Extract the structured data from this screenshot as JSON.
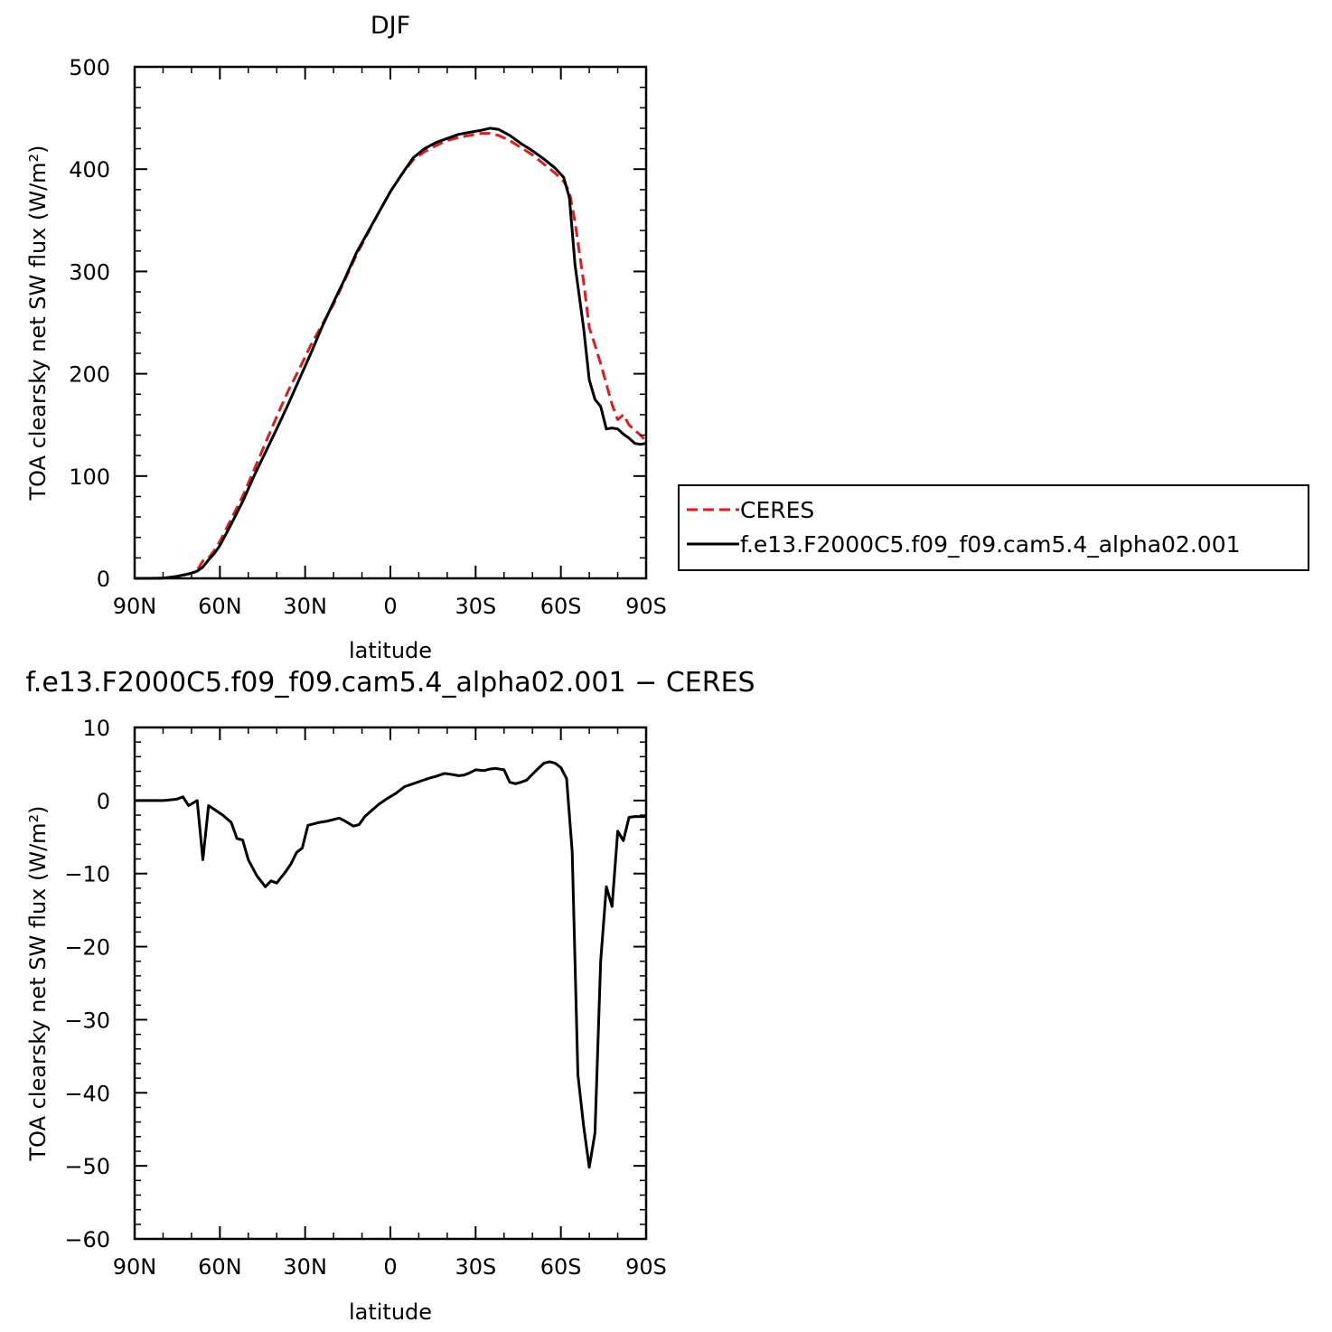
{
  "chart_data": [
    {
      "type": "line",
      "title": "DJF",
      "xlabel": "latitude",
      "ylabel": "TOA clearsky net SW flux (W/m²)",
      "xlim": [
        90,
        -90
      ],
      "ylim": [
        0,
        500
      ],
      "x_ticks": [
        {
          "v": 90,
          "label": "90N"
        },
        {
          "v": 60,
          "label": "60N"
        },
        {
          "v": 30,
          "label": "30N"
        },
        {
          "v": 0,
          "label": "0"
        },
        {
          "v": -30,
          "label": "30S"
        },
        {
          "v": -60,
          "label": "60S"
        },
        {
          "v": -90,
          "label": "90S"
        }
      ],
      "y_ticks": [
        {
          "v": 0,
          "label": "0"
        },
        {
          "v": 100,
          "label": "100"
        },
        {
          "v": 200,
          "label": "200"
        },
        {
          "v": 300,
          "label": "300"
        },
        {
          "v": 400,
          "label": "400"
        },
        {
          "v": 500,
          "label": "500"
        }
      ],
      "legend_position": "right",
      "series": [
        {
          "name": "CERES",
          "color": "#e31a1c",
          "dash": true,
          "x": [
            90,
            85,
            80,
            75,
            70,
            68,
            66,
            64,
            62,
            60,
            56,
            52,
            48,
            44,
            40,
            36,
            32,
            28,
            24,
            20,
            16,
            12,
            8,
            4,
            0,
            -4,
            -8,
            -12,
            -16,
            -20,
            -24,
            -28,
            -32,
            -35,
            -38,
            -42,
            -46,
            -50,
            -54,
            -58,
            -61,
            -63,
            -65,
            -68,
            -70,
            -72,
            -74,
            -76,
            -78,
            -80,
            -82,
            -84,
            -86,
            -88,
            -90
          ],
          "y": [
            0,
            0,
            0.2,
            1.5,
            5,
            8,
            17,
            20,
            27,
            36,
            58,
            80,
            106,
            132,
            158,
            183,
            205,
            228,
            248,
            268,
            292,
            316,
            337,
            358,
            378,
            395,
            409,
            417,
            423,
            428,
            431,
            433,
            435,
            435,
            433,
            428,
            421,
            414,
            405,
            396,
            388,
            378,
            348,
            290,
            245,
            228,
            210,
            190,
            170,
            155,
            160,
            150,
            145,
            140,
            134
          ]
        },
        {
          "name": "f.e13.F2000C5.f09_f09.cam5.4_alpha02.001",
          "color": "#000000",
          "dash": false,
          "x": [
            90,
            85,
            80,
            75,
            70,
            68,
            66,
            64,
            62,
            60,
            56,
            52,
            48,
            44,
            40,
            36,
            32,
            28,
            24,
            20,
            16,
            12,
            8,
            4,
            0,
            -4,
            -8,
            -12,
            -16,
            -20,
            -24,
            -28,
            -32,
            -35,
            -38,
            -42,
            -46,
            -50,
            -54,
            -58,
            -61,
            -63,
            -65,
            -68,
            -70,
            -72,
            -74,
            -76,
            -78,
            -80,
            -82,
            -84,
            -86,
            -88,
            -90
          ],
          "y": [
            0,
            0,
            0.2,
            2,
            5,
            7,
            11,
            18,
            24,
            32,
            53,
            75,
            100,
            123,
            146,
            170,
            195,
            220,
            246,
            270,
            293,
            318,
            338,
            358,
            378,
            395,
            411,
            420,
            426,
            430,
            434,
            436,
            438,
            440,
            439,
            433,
            425,
            418,
            410,
            401,
            392,
            372,
            306,
            245,
            194,
            175,
            168,
            146,
            147,
            146,
            141,
            137,
            132,
            131,
            132
          ]
        }
      ]
    },
    {
      "type": "line",
      "title": "f.e13.F2000C5.f09_f09.cam5.4_alpha02.001 − CERES",
      "xlabel": "latitude",
      "ylabel": "TOA clearsky net SW flux (W/m²)",
      "xlim": [
        90,
        -90
      ],
      "ylim": [
        -60,
        10
      ],
      "x_ticks": [
        {
          "v": 90,
          "label": "90N"
        },
        {
          "v": 60,
          "label": "60N"
        },
        {
          "v": 30,
          "label": "30N"
        },
        {
          "v": 0,
          "label": "0"
        },
        {
          "v": -30,
          "label": "30S"
        },
        {
          "v": -60,
          "label": "60S"
        },
        {
          "v": -90,
          "label": "90S"
        }
      ],
      "y_ticks": [
        {
          "v": 10,
          "label": "10"
        },
        {
          "v": 0,
          "label": "0"
        },
        {
          "v": -10,
          "label": "−10"
        },
        {
          "v": -20,
          "label": "−20"
        },
        {
          "v": -30,
          "label": "−30"
        },
        {
          "v": -40,
          "label": "−40"
        },
        {
          "v": -50,
          "label": "−50"
        },
        {
          "v": -60,
          "label": "−60"
        }
      ],
      "series": [
        {
          "color": "#000000",
          "dash": false,
          "x": [
            90,
            84,
            80,
            77,
            75,
            73,
            71,
            68,
            66,
            64,
            62,
            59,
            56,
            54,
            52,
            50,
            47,
            44,
            42,
            40,
            37,
            35,
            33,
            31,
            29,
            27,
            25,
            22,
            18,
            16,
            13,
            11,
            9,
            7,
            4,
            1,
            -2,
            -5,
            -8,
            -11,
            -14,
            -16,
            -19,
            -21,
            -24,
            -26,
            -28,
            -30,
            -33,
            -35,
            -37,
            -40,
            -42,
            -44,
            -46,
            -48,
            -51,
            -54,
            -56,
            -58,
            -60,
            -62,
            -64,
            -66,
            -68,
            -70,
            -72,
            -74,
            -76,
            -78,
            -80,
            -82,
            -84,
            -86,
            -88,
            -90
          ],
          "y": [
            0,
            0,
            0,
            0.1,
            0.2,
            0.5,
            -0.7,
            0,
            -8.1,
            -0.7,
            -1.2,
            -2,
            -3,
            -5.2,
            -5.4,
            -8.1,
            -10.3,
            -11.8,
            -11,
            -11.3,
            -9.8,
            -8.7,
            -7.1,
            -6.5,
            -3.4,
            -3.2,
            -3,
            -2.8,
            -2.4,
            -2.8,
            -3.5,
            -3.3,
            -2.2,
            -1.5,
            -0.5,
            0.3,
            1,
            1.9,
            2.3,
            2.7,
            3.1,
            3.3,
            3.7,
            3.6,
            3.4,
            3.5,
            3.8,
            4.2,
            4.1,
            4.3,
            4.4,
            4.2,
            2.5,
            2.3,
            2.5,
            2.8,
            4,
            5.1,
            5.3,
            5.1,
            4.5,
            3,
            -7,
            -37.5,
            -44.5,
            -50.2,
            -45.5,
            -22,
            -11.8,
            -14.5,
            -4.2,
            -5.5,
            -2.3,
            -2.2,
            -2.2,
            -2.2
          ]
        }
      ]
    }
  ]
}
